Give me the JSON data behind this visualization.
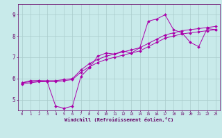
{
  "title": "",
  "xlabel": "Windchill (Refroidissement éolien,°C)",
  "bg_color": "#c8eaea",
  "line_color": "#aa00aa",
  "grid_color": "#aacccc",
  "xlim": [
    -0.5,
    23.5
  ],
  "ylim": [
    4.5,
    9.5
  ],
  "xticks": [
    0,
    1,
    2,
    3,
    4,
    5,
    6,
    7,
    8,
    9,
    10,
    11,
    12,
    13,
    14,
    15,
    16,
    17,
    18,
    19,
    20,
    21,
    22,
    23
  ],
  "yticks": [
    5,
    6,
    7,
    8,
    9
  ],
  "series": [
    [
      5.8,
      5.9,
      5.9,
      5.85,
      4.7,
      4.6,
      4.7,
      6.1,
      6.5,
      7.05,
      7.2,
      7.15,
      7.3,
      7.2,
      7.45,
      8.7,
      8.8,
      9.0,
      8.3,
      8.15,
      7.7,
      7.5,
      8.35,
      8.3
    ],
    [
      5.8,
      5.85,
      5.9,
      5.9,
      5.9,
      5.95,
      6.0,
      6.4,
      6.7,
      6.9,
      7.05,
      7.15,
      7.25,
      7.35,
      7.45,
      7.65,
      7.85,
      8.05,
      8.15,
      8.25,
      8.3,
      8.35,
      8.4,
      8.45
    ],
    [
      5.75,
      5.8,
      5.85,
      5.85,
      5.85,
      5.9,
      5.95,
      6.3,
      6.55,
      6.75,
      6.9,
      7.0,
      7.1,
      7.2,
      7.3,
      7.5,
      7.7,
      7.9,
      8.0,
      8.1,
      8.15,
      8.2,
      8.25,
      8.3
    ]
  ]
}
